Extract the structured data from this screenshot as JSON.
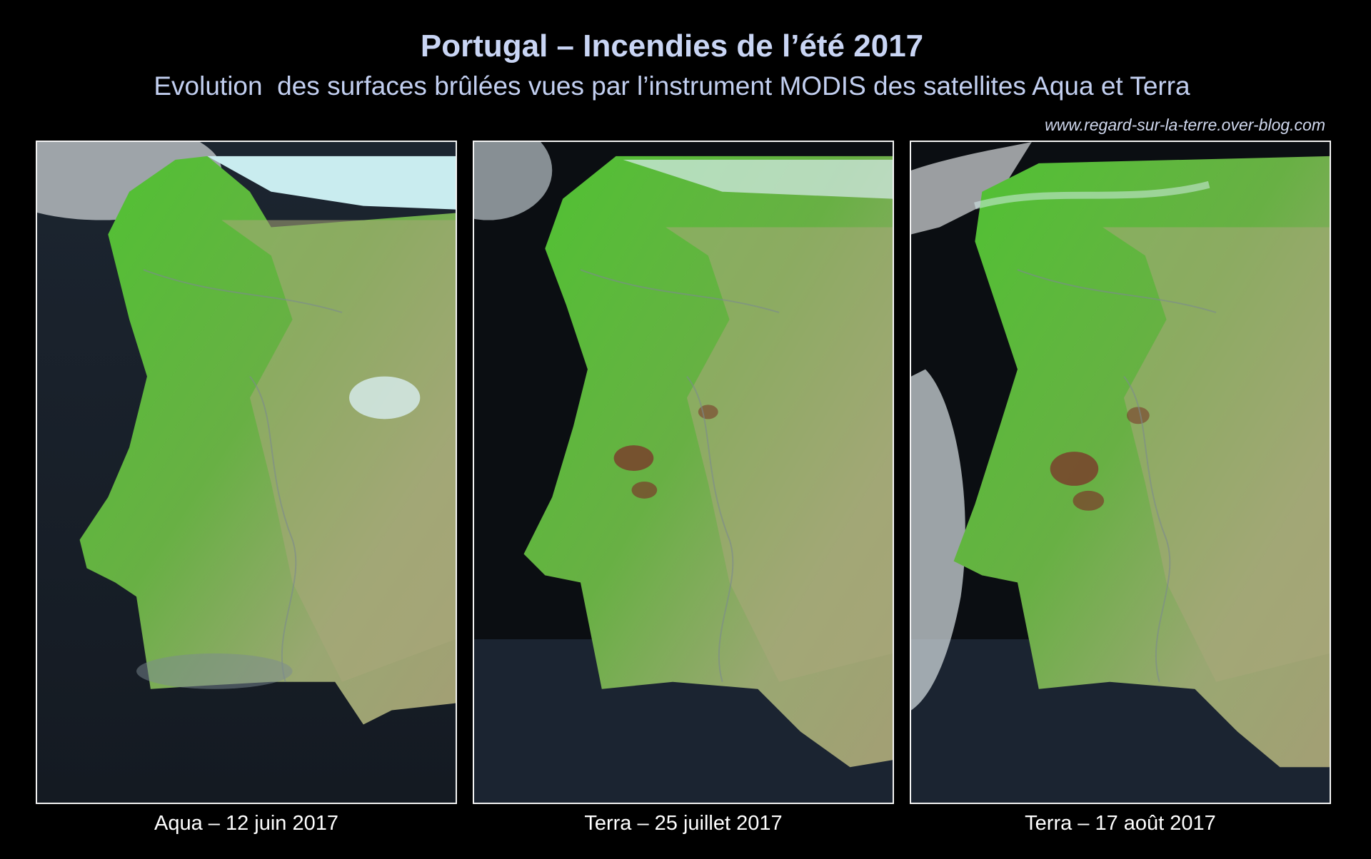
{
  "title": "Portugal – Incendies de l’été 2017",
  "subtitle": "Evolution  des surfaces brûlées vues par l’instrument MODIS des satellites Aqua et Terra",
  "source": "www.regard-sur-la-terre.over-blog.com",
  "panels": [
    {
      "caption": "Aqua – 12 juin 2017"
    },
    {
      "caption": "Terra – 25 juillet 2017"
    },
    {
      "caption": "Terra – 17 août 2017"
    }
  ],
  "colors": {
    "ocean": "#12181f",
    "vegetation": "#4fc232",
    "dry_land": "#a9a87a",
    "cloud": "#c9ecef",
    "burn_scar": "#7a3a2a"
  }
}
